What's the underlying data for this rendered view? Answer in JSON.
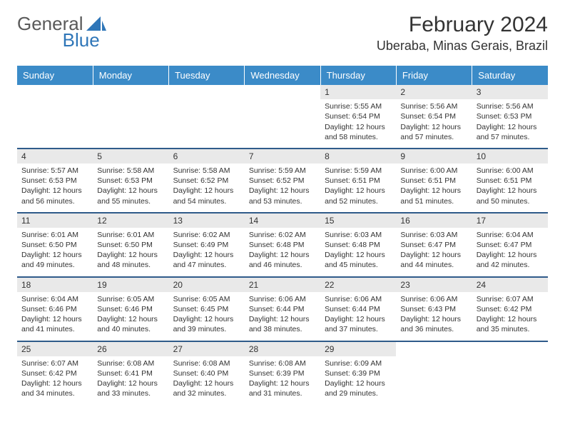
{
  "brand": {
    "part1": "General",
    "part2": "Blue"
  },
  "title": "February 2024",
  "location": "Uberaba, Minas Gerais, Brazil",
  "colors": {
    "header_bg": "#3b8bc8",
    "header_text": "#ffffff",
    "row_divider": "#2f5b8a",
    "daynum_bg": "#e9e9e9",
    "text": "#333333",
    "brand_gray": "#5a5a5a",
    "brand_blue": "#2f76b8"
  },
  "day_headers": [
    "Sunday",
    "Monday",
    "Tuesday",
    "Wednesday",
    "Thursday",
    "Friday",
    "Saturday"
  ],
  "weeks": [
    [
      {
        "empty": true
      },
      {
        "empty": true
      },
      {
        "empty": true
      },
      {
        "empty": true
      },
      {
        "day": 1,
        "sunrise": "Sunrise: 5:55 AM",
        "sunset": "Sunset: 6:54 PM",
        "daylight": "Daylight: 12 hours and 58 minutes."
      },
      {
        "day": 2,
        "sunrise": "Sunrise: 5:56 AM",
        "sunset": "Sunset: 6:54 PM",
        "daylight": "Daylight: 12 hours and 57 minutes."
      },
      {
        "day": 3,
        "sunrise": "Sunrise: 5:56 AM",
        "sunset": "Sunset: 6:53 PM",
        "daylight": "Daylight: 12 hours and 57 minutes."
      }
    ],
    [
      {
        "day": 4,
        "sunrise": "Sunrise: 5:57 AM",
        "sunset": "Sunset: 6:53 PM",
        "daylight": "Daylight: 12 hours and 56 minutes."
      },
      {
        "day": 5,
        "sunrise": "Sunrise: 5:58 AM",
        "sunset": "Sunset: 6:53 PM",
        "daylight": "Daylight: 12 hours and 55 minutes."
      },
      {
        "day": 6,
        "sunrise": "Sunrise: 5:58 AM",
        "sunset": "Sunset: 6:52 PM",
        "daylight": "Daylight: 12 hours and 54 minutes."
      },
      {
        "day": 7,
        "sunrise": "Sunrise: 5:59 AM",
        "sunset": "Sunset: 6:52 PM",
        "daylight": "Daylight: 12 hours and 53 minutes."
      },
      {
        "day": 8,
        "sunrise": "Sunrise: 5:59 AM",
        "sunset": "Sunset: 6:51 PM",
        "daylight": "Daylight: 12 hours and 52 minutes."
      },
      {
        "day": 9,
        "sunrise": "Sunrise: 6:00 AM",
        "sunset": "Sunset: 6:51 PM",
        "daylight": "Daylight: 12 hours and 51 minutes."
      },
      {
        "day": 10,
        "sunrise": "Sunrise: 6:00 AM",
        "sunset": "Sunset: 6:51 PM",
        "daylight": "Daylight: 12 hours and 50 minutes."
      }
    ],
    [
      {
        "day": 11,
        "sunrise": "Sunrise: 6:01 AM",
        "sunset": "Sunset: 6:50 PM",
        "daylight": "Daylight: 12 hours and 49 minutes."
      },
      {
        "day": 12,
        "sunrise": "Sunrise: 6:01 AM",
        "sunset": "Sunset: 6:50 PM",
        "daylight": "Daylight: 12 hours and 48 minutes."
      },
      {
        "day": 13,
        "sunrise": "Sunrise: 6:02 AM",
        "sunset": "Sunset: 6:49 PM",
        "daylight": "Daylight: 12 hours and 47 minutes."
      },
      {
        "day": 14,
        "sunrise": "Sunrise: 6:02 AM",
        "sunset": "Sunset: 6:48 PM",
        "daylight": "Daylight: 12 hours and 46 minutes."
      },
      {
        "day": 15,
        "sunrise": "Sunrise: 6:03 AM",
        "sunset": "Sunset: 6:48 PM",
        "daylight": "Daylight: 12 hours and 45 minutes."
      },
      {
        "day": 16,
        "sunrise": "Sunrise: 6:03 AM",
        "sunset": "Sunset: 6:47 PM",
        "daylight": "Daylight: 12 hours and 44 minutes."
      },
      {
        "day": 17,
        "sunrise": "Sunrise: 6:04 AM",
        "sunset": "Sunset: 6:47 PM",
        "daylight": "Daylight: 12 hours and 42 minutes."
      }
    ],
    [
      {
        "day": 18,
        "sunrise": "Sunrise: 6:04 AM",
        "sunset": "Sunset: 6:46 PM",
        "daylight": "Daylight: 12 hours and 41 minutes."
      },
      {
        "day": 19,
        "sunrise": "Sunrise: 6:05 AM",
        "sunset": "Sunset: 6:46 PM",
        "daylight": "Daylight: 12 hours and 40 minutes."
      },
      {
        "day": 20,
        "sunrise": "Sunrise: 6:05 AM",
        "sunset": "Sunset: 6:45 PM",
        "daylight": "Daylight: 12 hours and 39 minutes."
      },
      {
        "day": 21,
        "sunrise": "Sunrise: 6:06 AM",
        "sunset": "Sunset: 6:44 PM",
        "daylight": "Daylight: 12 hours and 38 minutes."
      },
      {
        "day": 22,
        "sunrise": "Sunrise: 6:06 AM",
        "sunset": "Sunset: 6:44 PM",
        "daylight": "Daylight: 12 hours and 37 minutes."
      },
      {
        "day": 23,
        "sunrise": "Sunrise: 6:06 AM",
        "sunset": "Sunset: 6:43 PM",
        "daylight": "Daylight: 12 hours and 36 minutes."
      },
      {
        "day": 24,
        "sunrise": "Sunrise: 6:07 AM",
        "sunset": "Sunset: 6:42 PM",
        "daylight": "Daylight: 12 hours and 35 minutes."
      }
    ],
    [
      {
        "day": 25,
        "sunrise": "Sunrise: 6:07 AM",
        "sunset": "Sunset: 6:42 PM",
        "daylight": "Daylight: 12 hours and 34 minutes."
      },
      {
        "day": 26,
        "sunrise": "Sunrise: 6:08 AM",
        "sunset": "Sunset: 6:41 PM",
        "daylight": "Daylight: 12 hours and 33 minutes."
      },
      {
        "day": 27,
        "sunrise": "Sunrise: 6:08 AM",
        "sunset": "Sunset: 6:40 PM",
        "daylight": "Daylight: 12 hours and 32 minutes."
      },
      {
        "day": 28,
        "sunrise": "Sunrise: 6:08 AM",
        "sunset": "Sunset: 6:39 PM",
        "daylight": "Daylight: 12 hours and 31 minutes."
      },
      {
        "day": 29,
        "sunrise": "Sunrise: 6:09 AM",
        "sunset": "Sunset: 6:39 PM",
        "daylight": "Daylight: 12 hours and 29 minutes."
      },
      {
        "empty": true
      },
      {
        "empty": true
      }
    ]
  ]
}
